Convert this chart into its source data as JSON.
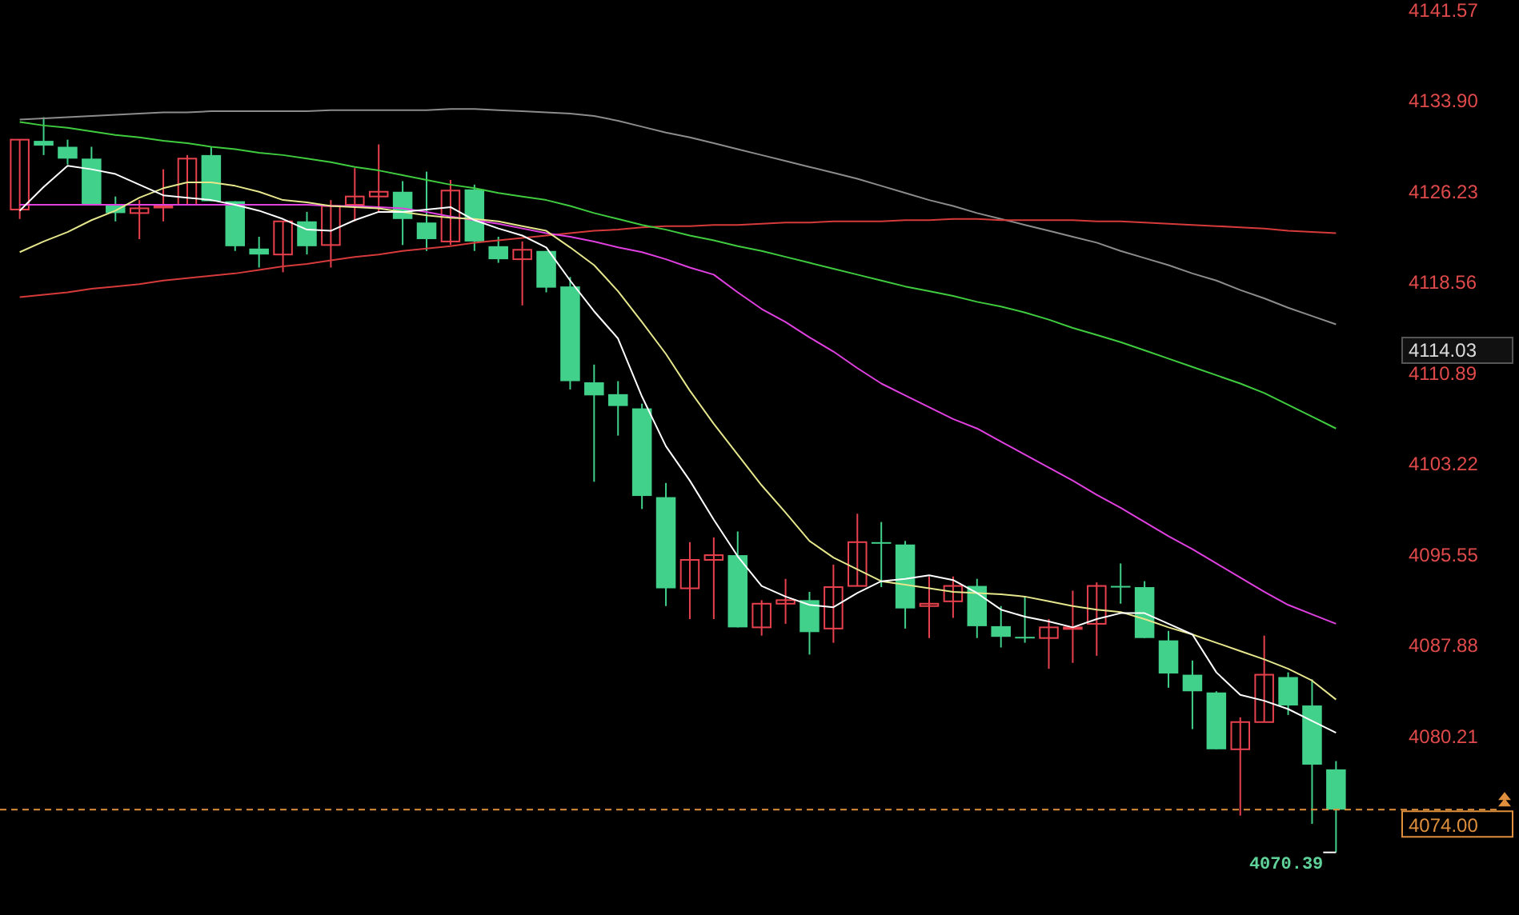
{
  "chart_data": {
    "type": "candlestick",
    "categories": [
      null,
      null,
      null,
      null,
      null,
      null,
      null,
      null,
      null,
      null,
      null,
      null,
      null,
      null,
      null,
      null,
      null,
      null,
      null,
      null,
      null,
      null,
      null,
      null,
      null,
      null,
      null,
      null,
      null,
      null,
      null,
      null,
      null,
      null,
      null,
      null,
      null,
      null,
      null,
      null,
      null,
      null,
      null,
      null,
      null,
      null,
      null,
      null,
      null,
      null,
      null,
      null,
      null,
      null,
      null,
      null
    ],
    "ohlc": [
      [
        4124.7,
        4130.6,
        4123.9,
        4130.6
      ],
      [
        4130.5,
        4132.5,
        4129.3,
        4130.1
      ],
      [
        4130.0,
        4130.6,
        4128.5,
        4129.0
      ],
      [
        4129.0,
        4130.0,
        4125.1,
        4125.1
      ],
      [
        4125.1,
        4125.8,
        4123.7,
        4124.4
      ],
      [
        4124.4,
        4125.5,
        4122.2,
        4124.8
      ],
      [
        4124.9,
        4128.1,
        4123.7,
        4125.0
      ],
      [
        4125.1,
        4129.3,
        4125.1,
        4129.0
      ],
      [
        4129.3,
        4130.0,
        4125.4,
        4125.4
      ],
      [
        4125.4,
        4125.4,
        4121.2,
        4121.6
      ],
      [
        4121.4,
        4122.4,
        4119.8,
        4120.9
      ],
      [
        4120.9,
        4123.7,
        4119.4,
        4123.7
      ],
      [
        4123.7,
        4124.5,
        4120.9,
        4121.6
      ],
      [
        4121.7,
        4125.5,
        4119.8,
        4125.0
      ],
      [
        4125.1,
        4128.2,
        4123.7,
        4125.8
      ],
      [
        4125.8,
        4130.2,
        4124.5,
        4126.2
      ],
      [
        4126.2,
        4127.1,
        4121.7,
        4123.9
      ],
      [
        4123.6,
        4127.9,
        4121.2,
        4122.2
      ],
      [
        4122.0,
        4127.2,
        4121.7,
        4126.3
      ],
      [
        4126.4,
        4126.8,
        4121.2,
        4122.0
      ],
      [
        4121.6,
        4122.4,
        4120.2,
        4120.5
      ],
      [
        4120.5,
        4122.0,
        4116.6,
        4121.3
      ],
      [
        4121.2,
        4121.2,
        4117.7,
        4118.1
      ],
      [
        4118.2,
        4119.0,
        4109.5,
        4110.2
      ],
      [
        4110.1,
        4111.6,
        4101.7,
        4109.0
      ],
      [
        4109.1,
        4110.2,
        4105.6,
        4108.1
      ],
      [
        4107.9,
        4108.3,
        4099.4,
        4100.5
      ],
      [
        4100.4,
        4101.6,
        4091.2,
        4092.7
      ],
      [
        4092.7,
        4096.6,
        4090.1,
        4095.1
      ],
      [
        4095.1,
        4097.0,
        4090.1,
        4095.5
      ],
      [
        4095.5,
        4097.5,
        4089.4,
        4089.4
      ],
      [
        4089.4,
        4091.7,
        4088.7,
        4091.4
      ],
      [
        4091.4,
        4093.5,
        4089.7,
        4091.7
      ],
      [
        4091.7,
        4092.4,
        4087.1,
        4089.0
      ],
      [
        4089.3,
        4094.7,
        4088.1,
        4092.8
      ],
      [
        4092.9,
        4099.0,
        4092.9,
        4096.6
      ],
      [
        4096.6,
        4098.3,
        4092.8,
        4096.5
      ],
      [
        4096.4,
        4096.7,
        4089.3,
        4091.0
      ],
      [
        4091.2,
        4093.7,
        4088.5,
        4091.4
      ],
      [
        4091.6,
        4093.7,
        4090.2,
        4092.9
      ],
      [
        4092.9,
        4093.5,
        4088.5,
        4089.5
      ],
      [
        4089.5,
        4091.2,
        4087.7,
        4088.6
      ],
      [
        4088.6,
        4092.0,
        4088.1,
        4088.5
      ],
      [
        4088.5,
        4090.1,
        4085.9,
        4089.4
      ],
      [
        4089.3,
        4092.5,
        4086.4,
        4089.4
      ],
      [
        4089.7,
        4093.2,
        4087.0,
        4092.9
      ],
      [
        4092.9,
        4094.8,
        4091.4,
        4092.8
      ],
      [
        4092.8,
        4093.3,
        4088.5,
        4088.5
      ],
      [
        4088.3,
        4089.1,
        4084.3,
        4085.5
      ],
      [
        4085.4,
        4086.6,
        4080.8,
        4084.0
      ],
      [
        4083.9,
        4084.0,
        4079.1,
        4079.1
      ],
      [
        4079.1,
        4081.8,
        4073.5,
        4081.4
      ],
      [
        4081.4,
        4088.7,
        4081.4,
        4085.4
      ],
      [
        4085.2,
        4085.6,
        4082.0,
        4082.8
      ],
      [
        4082.8,
        4085.0,
        4072.8,
        4077.8
      ],
      [
        4077.4,
        4078.1,
        4070.39,
        4074.0
      ]
    ],
    "colors": [
      "#e8414e",
      "#41d18b",
      "#41d18b",
      "#41d18b",
      "#41d18b",
      "#e8414e",
      "#e8414e",
      "#e8414e",
      "#41d18b",
      "#41d18b",
      "#41d18b",
      "#e8414e",
      "#41d18b",
      "#e8414e",
      "#e8414e",
      "#e8414e",
      "#41d18b",
      "#41d18b",
      "#e8414e",
      "#41d18b",
      "#41d18b",
      "#e8414e",
      "#41d18b",
      "#41d18b",
      "#41d18b",
      "#41d18b",
      "#41d18b",
      "#41d18b",
      "#e8414e",
      "#e8414e",
      "#41d18b",
      "#e8414e",
      "#e8414e",
      "#41d18b",
      "#e8414e",
      "#e8414e",
      "#41d18b",
      "#41d18b",
      "#e8414e",
      "#e8414e",
      "#41d18b",
      "#41d18b",
      "#41d18b",
      "#e8414e",
      "#e8414e",
      "#e8414e",
      "#41d18b",
      "#41d18b",
      "#41d18b",
      "#41d18b",
      "#41d18b",
      "#e8414e",
      "#e8414e",
      "#41d18b",
      "#41d18b",
      "#41d18b"
    ],
    "series": [
      {
        "type": "line",
        "color": "#8c8c8c",
        "values": [
          4132.3,
          4132.4,
          4132.5,
          4132.6,
          4132.7,
          4132.8,
          4132.9,
          4132.9,
          4133.0,
          4133.0,
          4133.0,
          4133.0,
          4133.0,
          4133.1,
          4133.1,
          4133.1,
          4133.1,
          4133.1,
          4133.2,
          4133.2,
          4133.1,
          4133.0,
          4132.9,
          4132.8,
          4132.6,
          4132.2,
          4131.7,
          4131.2,
          4130.8,
          4130.3,
          4129.8,
          4129.3,
          4128.8,
          4128.3,
          4127.8,
          4127.3,
          4126.7,
          4126.1,
          4125.5,
          4125.0,
          4124.4,
          4123.9,
          4123.4,
          4122.9,
          4122.4,
          4121.9,
          4121.2,
          4120.6,
          4120.0,
          4119.3,
          4118.7,
          4117.9,
          4117.2,
          4116.4,
          4115.7,
          4115.0
        ]
      },
      {
        "type": "line",
        "color": "#d63a3a",
        "values": [
          4117.3,
          4117.5,
          4117.7,
          4118.0,
          4118.2,
          4118.4,
          4118.7,
          4118.9,
          4119.1,
          4119.3,
          4119.6,
          4119.9,
          4120.1,
          4120.4,
          4120.7,
          4120.9,
          4121.2,
          4121.4,
          4121.6,
          4121.9,
          4122.1,
          4122.3,
          4122.5,
          4122.7,
          4122.9,
          4123.0,
          4123.2,
          4123.3,
          4123.3,
          4123.4,
          4123.4,
          4123.5,
          4123.6,
          4123.6,
          4123.7,
          4123.7,
          4123.7,
          4123.8,
          4123.8,
          4123.9,
          4123.9,
          4123.8,
          4123.8,
          4123.8,
          4123.8,
          4123.7,
          4123.7,
          4123.6,
          4123.5,
          4123.4,
          4123.3,
          4123.2,
          4123.1,
          4122.9,
          4122.8,
          4122.7
        ]
      },
      {
        "type": "line",
        "color": "#3fcc3f",
        "values": [
          4132.1,
          4131.8,
          4131.6,
          4131.3,
          4131.0,
          4130.8,
          4130.5,
          4130.3,
          4130.0,
          4129.8,
          4129.5,
          4129.3,
          4129.0,
          4128.7,
          4128.3,
          4128.0,
          4127.6,
          4127.2,
          4126.8,
          4126.5,
          4126.1,
          4125.8,
          4125.5,
          4125.0,
          4124.4,
          4123.9,
          4123.4,
          4123.0,
          4122.5,
          4122.1,
          4121.6,
          4121.2,
          4120.7,
          4120.2,
          4119.7,
          4119.2,
          4118.7,
          4118.2,
          4117.8,
          4117.4,
          4116.9,
          4116.5,
          4116.0,
          4115.4,
          4114.7,
          4114.1,
          4113.5,
          4112.8,
          4112.1,
          4111.4,
          4110.7,
          4110.0,
          4109.2,
          4108.2,
          4107.2,
          4106.2
        ]
      },
      {
        "type": "line",
        "color": "#e040e0",
        "values": [
          4125.1,
          4125.1,
          4125.1,
          4125.1,
          4125.1,
          4125.1,
          4125.1,
          4125.1,
          4125.1,
          4125.1,
          4125.1,
          4125.1,
          4125.1,
          4125.0,
          4125.0,
          4124.9,
          4124.8,
          4124.5,
          4124.1,
          4123.8,
          4123.5,
          4123.1,
          4122.7,
          4122.4,
          4122.0,
          4121.5,
          4121.1,
          4120.5,
          4119.8,
          4119.2,
          4117.7,
          4116.3,
          4115.2,
          4113.9,
          4112.7,
          4111.3,
          4110.0,
          4109.0,
          4108.0,
          4107.0,
          4106.2,
          4105.1,
          4104.0,
          4102.9,
          4101.8,
          4100.6,
          4099.5,
          4098.3,
          4097.1,
          4096.0,
          4094.8,
          4093.6,
          4092.4,
          4091.3,
          4090.5,
          4089.7
        ]
      },
      {
        "type": "line",
        "color": "#e6e68c",
        "values": [
          4121.1,
          4122.0,
          4122.8,
          4123.8,
          4124.6,
          4125.7,
          4126.5,
          4127.0,
          4127.0,
          4126.7,
          4126.2,
          4125.5,
          4125.3,
          4125.0,
          4124.9,
          4124.8,
          4124.5,
          4124.2,
          4124.0,
          4123.9,
          4123.7,
          4123.3,
          4122.9,
          4121.5,
          4120.0,
          4117.8,
          4115.2,
          4112.5,
          4109.4,
          4106.6,
          4104.0,
          4101.4,
          4099.1,
          4096.7,
          4095.3,
          4094.3,
          4093.3,
          4093.0,
          4092.7,
          4092.4,
          4092.3,
          4092.2,
          4092.0,
          4091.6,
          4091.2,
          4090.9,
          4090.7,
          4090.1,
          4089.4,
          4088.8,
          4088.1,
          4087.4,
          4086.7,
          4085.9,
          4084.9,
          4083.3
        ]
      },
      {
        "type": "line",
        "color": "#ffffff",
        "values": [
          4124.6,
          4126.6,
          4128.4,
          4128.1,
          4127.7,
          4126.8,
          4125.9,
          4125.7,
          4125.5,
          4125.1,
          4124.6,
          4123.9,
          4123.0,
          4122.9,
          4123.8,
          4124.5,
          4124.5,
          4124.7,
          4124.9,
          4123.8,
          4123.1,
          4122.5,
          4121.5,
          4118.7,
          4116.1,
          4113.8,
          4108.9,
          4104.7,
          4101.8,
          4098.5,
          4095.4,
          4092.9,
          4092.0,
          4091.3,
          4091.1,
          4092.3,
          4093.3,
          4093.5,
          4093.8,
          4093.4,
          4092.3,
          4090.9,
          4090.3,
          4089.9,
          4089.4,
          4090.1,
          4090.6,
          4090.6,
          4089.7,
          4088.8,
          4085.6,
          4083.7,
          4083.2,
          4082.5,
          4081.5,
          4080.5
        ]
      }
    ],
    "ylim": [
      4065.1,
      4142.4
    ],
    "yticks": [
      4141.57,
      {
        "value": 4133.9,
        "label": "4133.90"
      },
      4126.23,
      4118.56,
      4110.89,
      4103.22,
      4095.55,
      4087.88,
      4080.21
    ],
    "ref_lines": [
      {
        "axis": "y",
        "value": 4074.0,
        "label": "4074.00",
        "color": "#e0903c",
        "line_style": "dashed"
      }
    ],
    "annotations": [
      "4114.03",
      "4070.39"
    ]
  }
}
